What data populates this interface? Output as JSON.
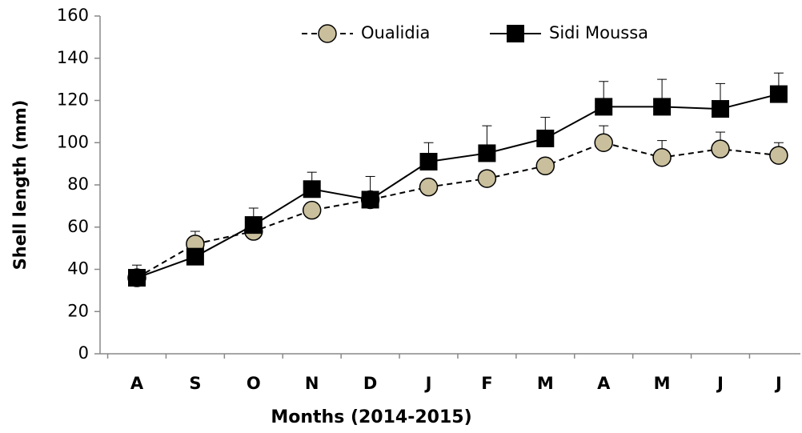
{
  "chart_data": {
    "type": "line",
    "xlabel": "Months (2014-2015)",
    "ylabel": "Shell length (mm)",
    "categories": [
      "A",
      "S",
      "O",
      "N",
      "D",
      "J",
      "F",
      "M",
      "A",
      "M",
      "J",
      "J"
    ],
    "series": [
      {
        "name": "Oualidia",
        "color": "#c9bf9c",
        "line_style": "dashed",
        "marker": "circle",
        "values": [
          36,
          52,
          58,
          68,
          73,
          79,
          83,
          89,
          100,
          93,
          97,
          94
        ],
        "errors": [
          6,
          6,
          null,
          null,
          null,
          null,
          null,
          null,
          8,
          8,
          8,
          6
        ]
      },
      {
        "name": "Sidi Moussa",
        "color": "#000000",
        "line_style": "solid",
        "marker": "square",
        "values": [
          36,
          46,
          61,
          78,
          73,
          91,
          95,
          102,
          117,
          117,
          116,
          123
        ],
        "errors": [
          null,
          null,
          8,
          8,
          11,
          9,
          13,
          10,
          12,
          13,
          12,
          10
        ]
      }
    ],
    "ylim": [
      0,
      160
    ],
    "yticks": [
      0,
      20,
      40,
      60,
      80,
      100,
      120,
      140,
      160
    ]
  }
}
